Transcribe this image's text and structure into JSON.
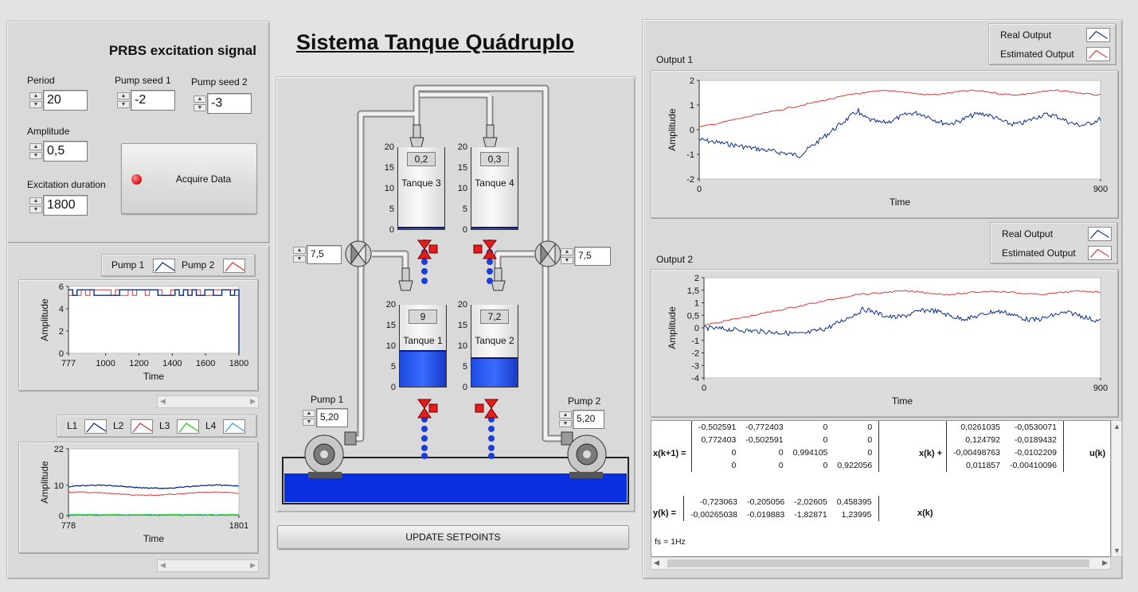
{
  "title": "Sistema Tanque Quádruplo",
  "prbs": {
    "heading": "PRBS excitation signal",
    "period_label": "Period",
    "period_value": "20",
    "seed1_label": "Pump seed 1",
    "seed1_value": "-2",
    "seed2_label": "Pump seed 2",
    "seed2_value": "-3",
    "amplitude_label": "Amplitude",
    "amplitude_value": "0,5",
    "duration_label": "Excitation duration",
    "duration_value": "1800",
    "acquire_label": "Acquire Data",
    "led_color": "#e02020"
  },
  "pump_legend": {
    "pump1": "Pump 1",
    "pump2": "Pump 2"
  },
  "level_legend": {
    "l1": "L1",
    "l2": "L2",
    "l3": "L3",
    "l4": "L4"
  },
  "process": {
    "valve1_value": "7,5",
    "valve2_value": "7,5",
    "pump1_label": "Pump 1",
    "pump1_value": "5,20",
    "pump2_label": "Pump 2",
    "pump2_value": "5,20",
    "tanks": [
      {
        "name": "Tanque 3",
        "value": "0,2",
        "level": 0.2
      },
      {
        "name": "Tanque 4",
        "value": "0,3",
        "level": 0.3
      },
      {
        "name": "Tanque 1",
        "value": "9",
        "level": 9
      },
      {
        "name": "Tanque 2",
        "value": "7,2",
        "level": 7.2
      }
    ],
    "tank_scale": [
      "20",
      "15",
      "10",
      "5",
      "0"
    ],
    "update_label": "UPDATE SETPOINTS",
    "water_color": "#0a2fe0"
  },
  "output1": {
    "label": "Output 1",
    "legend_real": "Real Output",
    "legend_est": "Estimated Output",
    "yticks": [
      "2",
      "1",
      "0",
      "-1",
      "-2"
    ],
    "xticks": [
      "0",
      "900"
    ],
    "xlabel": "Time",
    "ylabel": "Amplitude"
  },
  "output2": {
    "label": "Output 2",
    "legend_real": "Real Output",
    "legend_est": "Estimated Output",
    "yticks": [
      "2",
      "1,5",
      "1",
      "0,5",
      "0",
      "-1",
      "-2",
      "-3",
      "-4"
    ],
    "xticks": [
      "0",
      "900"
    ],
    "xlabel": "Time",
    "ylabel": "Amplitude"
  },
  "pump_chart": {
    "yticks": [
      "6",
      "4",
      "2",
      "0"
    ],
    "xticks": [
      "777",
      "1000",
      "1200",
      "1400",
      "1600",
      "1800"
    ],
    "xlabel": "Time",
    "ylabel": "Amplitude"
  },
  "level_chart": {
    "yticks": [
      "22",
      "10",
      "0"
    ],
    "xticks": [
      "778",
      "1801"
    ],
    "xlabel": "Time",
    "ylabel": "Amplitude"
  },
  "colors": {
    "real": "#0b2f8a",
    "estimated": "#d63a3a",
    "green": "#1ec81e",
    "cyan": "#38a8e0"
  },
  "model": {
    "x_lhs": "x(k+1) =",
    "A": [
      [
        "-0,502591",
        "-0,772403",
        "0",
        "0"
      ],
      [
        "0,772403",
        "-0,502591",
        "0",
        "0"
      ],
      [
        "0",
        "0",
        "0,994105",
        "0"
      ],
      [
        "0",
        "0",
        "0",
        "0,922056"
      ]
    ],
    "x_mid": "x(k) +",
    "B": [
      [
        "0,0261035",
        "-0,0530071"
      ],
      [
        "0,124792",
        "-0,0189432"
      ],
      [
        "-0,00498763",
        "-0,0102209"
      ],
      [
        "0,011857",
        "-0,00410096"
      ]
    ],
    "u_rhs": "u(k)",
    "y_lhs": "y(k) =",
    "C": [
      [
        "-0,723063",
        "-0,205056",
        "-2,02605",
        "0,458395"
      ],
      [
        "-0,00265038",
        "-0,019883",
        "-1,82871",
        "1,23995"
      ]
    ],
    "y_rhs": "x(k)",
    "fs": "fs = 1Hz"
  }
}
